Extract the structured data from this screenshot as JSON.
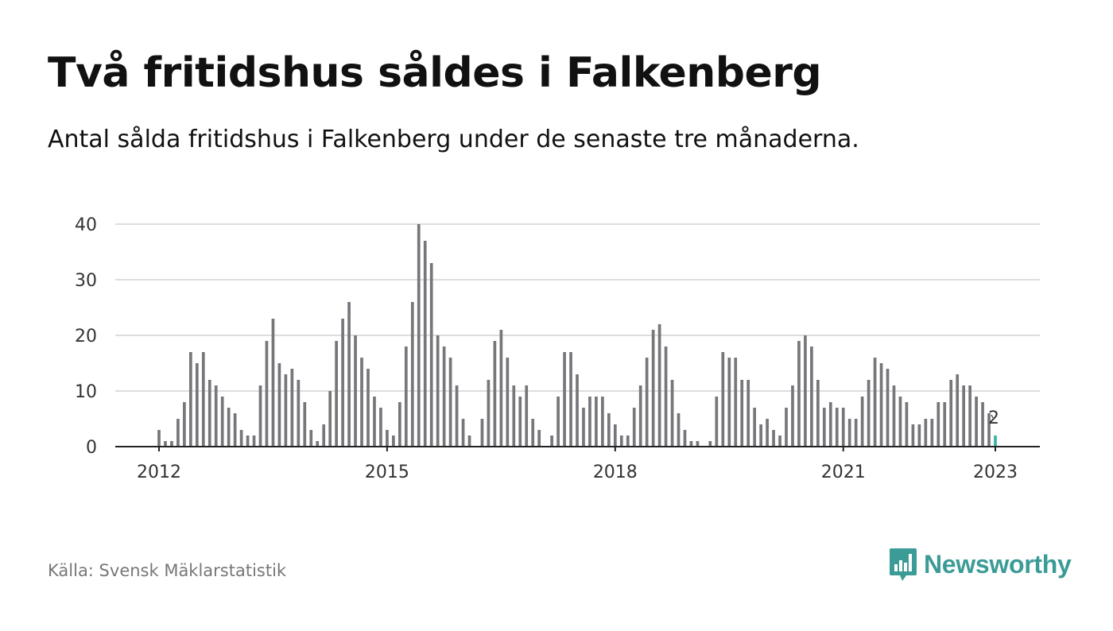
{
  "title": "Två fritidshus såldes i Falkenberg",
  "subtitle": "Antal sålda fritidshus i Falkenberg under de senaste tre månaderna.",
  "source": "Källa: Svensk Mäklarstatistik",
  "brand": {
    "name": "Newsworthy",
    "icon": "newsworthy-logo-icon",
    "color": "#3b9b96"
  },
  "colors": {
    "bar": "#76767b",
    "highlight": "#3bb3a6",
    "grid": "#dddddd",
    "axis": "#222222"
  },
  "chart_data": {
    "type": "bar",
    "title": "Två fritidshus såldes i Falkenberg",
    "xlabel": "",
    "ylabel": "",
    "ylim": [
      0,
      40
    ],
    "yticks": [
      0,
      10,
      20,
      30,
      40
    ],
    "xticks": [
      {
        "label": "2012",
        "year": 2012
      },
      {
        "label": "2015",
        "year": 2015
      },
      {
        "label": "2018",
        "year": 2018
      },
      {
        "label": "2021",
        "year": 2021
      },
      {
        "label": "2023",
        "year": 2023
      }
    ],
    "x_start": "2012-01",
    "x_end": "2023-01",
    "grid": true,
    "values": [
      3,
      1,
      1,
      5,
      8,
      17,
      15,
      17,
      12,
      11,
      9,
      7,
      6,
      3,
      2,
      2,
      11,
      19,
      23,
      15,
      13,
      14,
      12,
      8,
      3,
      1,
      4,
      10,
      19,
      23,
      26,
      20,
      16,
      14,
      9,
      7,
      3,
      2,
      8,
      18,
      26,
      40,
      37,
      33,
      20,
      18,
      16,
      11,
      5,
      2,
      0,
      5,
      12,
      19,
      21,
      16,
      11,
      9,
      11,
      5,
      3,
      0,
      2,
      9,
      17,
      17,
      13,
      7,
      9,
      9,
      9,
      6,
      4,
      2,
      2,
      7,
      11,
      16,
      21,
      22,
      18,
      12,
      6,
      3,
      1,
      1,
      0,
      1,
      9,
      17,
      16,
      16,
      12,
      12,
      7,
      4,
      5,
      3,
      2,
      7,
      11,
      19,
      20,
      18,
      12,
      7,
      8,
      7,
      7,
      5,
      5,
      9,
      12,
      16,
      15,
      14,
      11,
      9,
      8,
      4,
      4,
      5,
      5,
      8,
      8,
      12,
      13,
      11,
      11,
      9,
      8,
      6,
      2
    ],
    "highlight_last": true,
    "annotation": "2"
  }
}
